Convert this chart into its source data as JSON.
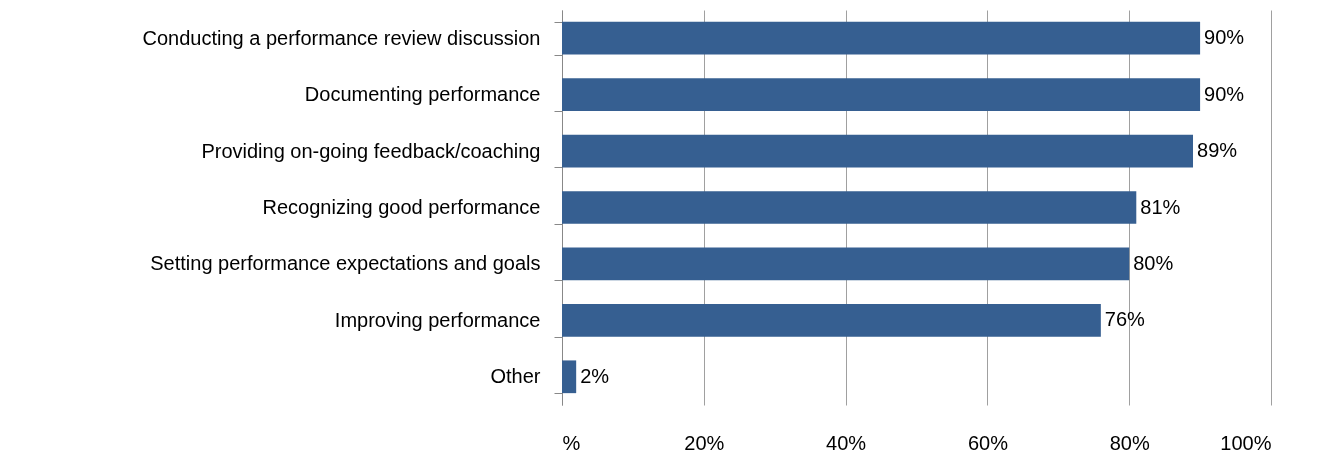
{
  "chart_data": {
    "type": "bar",
    "orientation": "horizontal",
    "categories": [
      "Conducting a performance review discussion",
      "Documenting performance",
      "Providing on-going feedback/coaching",
      "Recognizing good performance",
      "Setting performance expectations and goals",
      "Improving performance",
      "Other"
    ],
    "values": [
      90,
      90,
      89,
      81,
      80,
      76,
      2
    ],
    "value_labels": [
      "90%",
      "90%",
      "89%",
      "81%",
      "80%",
      "76%",
      "2%"
    ],
    "color": "#365f91",
    "xlim": [
      0,
      100
    ],
    "xticks": [
      {
        "value": 0,
        "label": "%"
      },
      {
        "value": 20,
        "label": "20%"
      },
      {
        "value": 40,
        "label": "40%"
      },
      {
        "value": 60,
        "label": "60%"
      },
      {
        "value": 80,
        "label": "80%"
      },
      {
        "value": 100,
        "label": "100%"
      }
    ],
    "grid": "x"
  }
}
